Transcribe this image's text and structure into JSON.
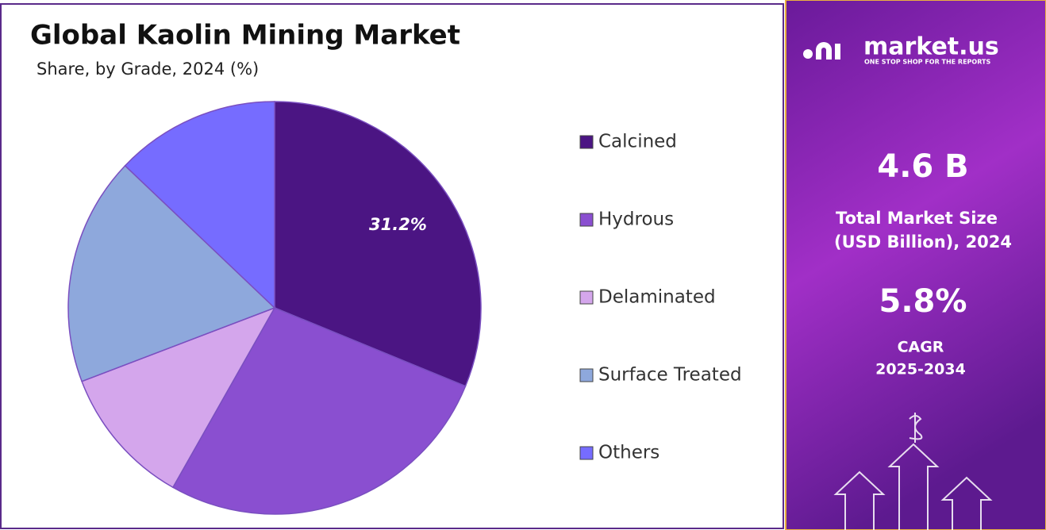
{
  "chart_data": {
    "type": "pie",
    "title": "Global Kaolin Mining Market",
    "subtitle": "Share, by Grade, 2024 (%)",
    "categories": [
      "Calcined",
      "Hydrous",
      "Delaminated",
      "Surface Treated",
      "Others"
    ],
    "values": [
      31.2,
      27.0,
      11.0,
      17.9,
      12.9
    ],
    "value_labels": [
      "31.2%",
      null,
      null,
      null,
      null
    ],
    "colors": [
      "#4b1583",
      "#8a4fd0",
      "#d4a6ec",
      "#8ea8dc",
      "#766cff"
    ],
    "legend": "right"
  },
  "side_panel": {
    "logo": "market.us",
    "tagline": "ONE STOP SHOP FOR THE REPORTS",
    "market_size": "4.6 B",
    "market_size_label_1": "Total Market Size",
    "market_size_label_2": "(USD Billion), 2024",
    "cagr": "5.8%",
    "cagr_label": "CAGR",
    "cagr_period": "2025-2034"
  }
}
